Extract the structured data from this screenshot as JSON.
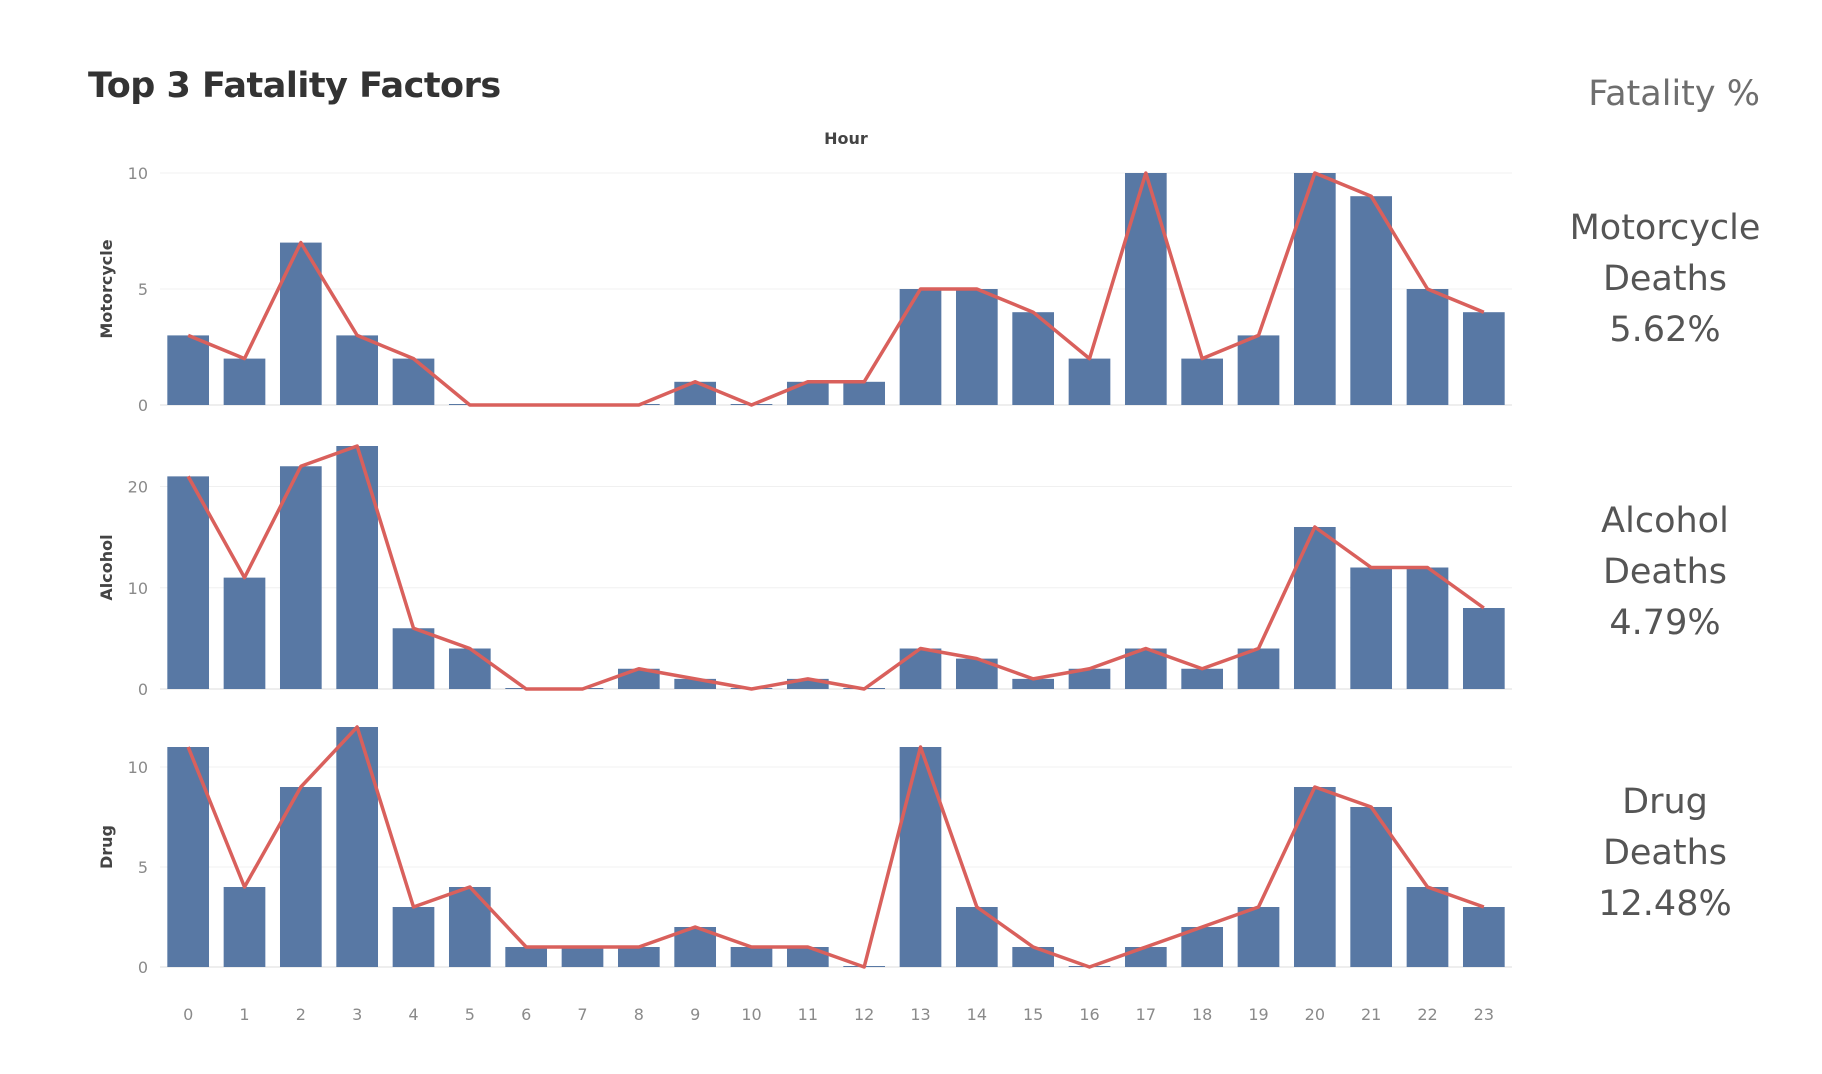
{
  "title": "Top 3 Fatality Factors",
  "percent_header": "Fatality %",
  "panels": [
    {
      "name": "Motorcycle",
      "label_line1": "Motorcycle",
      "label_line2": "Deaths",
      "percent": "5.62%"
    },
    {
      "name": "Alcohol",
      "label_line1": "Alcohol",
      "label_line2": "Deaths",
      "percent": "4.79%"
    },
    {
      "name": "Drug",
      "label_line1": "Drug",
      "label_line2": "Deaths",
      "percent": "12.48%"
    }
  ],
  "colors": {
    "bar": "#5878a4",
    "line": "#d9605c",
    "grid": "#f0f0f0",
    "axis": "#dddddd"
  },
  "chart_data": {
    "type": "bar",
    "overlay": "line",
    "xlabel": "Hour",
    "categories": [
      "0",
      "1",
      "2",
      "3",
      "4",
      "5",
      "6",
      "7",
      "8",
      "9",
      "10",
      "11",
      "12",
      "13",
      "14",
      "15",
      "16",
      "17",
      "18",
      "19",
      "20",
      "21",
      "22",
      "23"
    ],
    "series": [
      {
        "name": "Motorcycle",
        "ylabel": "Motorcycle",
        "ylim": [
          0,
          10
        ],
        "yticks": [
          0,
          5,
          10
        ],
        "values": [
          3,
          2,
          7,
          3,
          2,
          0,
          0,
          0,
          0,
          1,
          0,
          1,
          1,
          5,
          5,
          4,
          2,
          10,
          2,
          3,
          10,
          9,
          5,
          4
        ]
      },
      {
        "name": "Alcohol",
        "ylabel": "Alcohol",
        "ylim": [
          0,
          24
        ],
        "yticks": [
          0,
          10,
          20
        ],
        "values": [
          21,
          11,
          22,
          24,
          6,
          4,
          0,
          0,
          2,
          1,
          0,
          1,
          0,
          4,
          3,
          1,
          2,
          4,
          2,
          4,
          16,
          12,
          12,
          8
        ]
      },
      {
        "name": "Drug",
        "ylabel": "Drug",
        "ylim": [
          0,
          12
        ],
        "yticks": [
          0,
          5,
          10
        ],
        "values": [
          11,
          4,
          9,
          12,
          3,
          4,
          1,
          1,
          1,
          2,
          1,
          1,
          0,
          11,
          3,
          1,
          0,
          1,
          2,
          3,
          9,
          8,
          4,
          3
        ]
      }
    ]
  }
}
